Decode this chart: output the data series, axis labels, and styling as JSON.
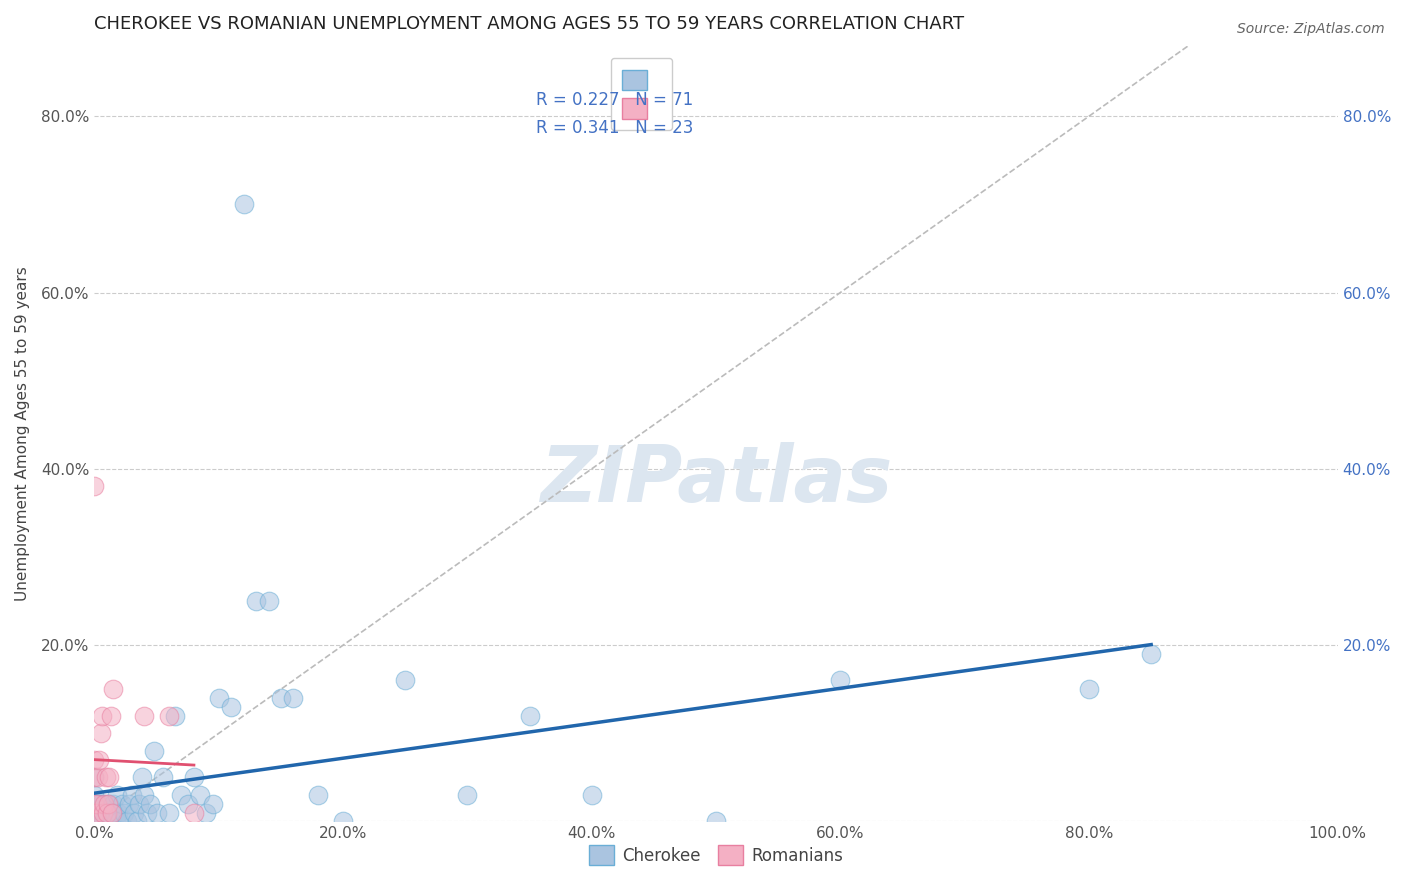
{
  "title": "CHEROKEE VS ROMANIAN UNEMPLOYMENT AMONG AGES 55 TO 59 YEARS CORRELATION CHART",
  "source": "Source: ZipAtlas.com",
  "ylabel": "Unemployment Among Ages 55 to 59 years",
  "xlim": [
    0.0,
    1.0
  ],
  "ylim": [
    0.0,
    0.88
  ],
  "xtick_positions": [
    0.0,
    0.2,
    0.4,
    0.6,
    0.8,
    1.0
  ],
  "xtick_labels": [
    "0.0%",
    "20.0%",
    "40.0%",
    "60.0%",
    "80.0%",
    "100.0%"
  ],
  "ytick_positions": [
    0.0,
    0.2,
    0.4,
    0.6,
    0.8
  ],
  "ytick_labels_left": [
    "",
    "20.0%",
    "40.0%",
    "60.0%",
    "80.0%"
  ],
  "ytick_labels_right": [
    "",
    "20.0%",
    "40.0%",
    "60.0%",
    "80.0%"
  ],
  "cherokee_color": "#aac4e0",
  "cherokee_edge": "#6aaed6",
  "romanian_color": "#f4b0c4",
  "romanian_edge": "#e87fa0",
  "trend_cherokee_color": "#2166ac",
  "trend_romanian_color": "#e05070",
  "diag_color": "#bbbbbb",
  "watermark_color": "#dce6f0",
  "watermark_text": "ZIPatlas",
  "legend_R_cherokee": "R = 0.227",
  "legend_N_cherokee": "N = 71",
  "legend_R_romanian": "R = 0.341",
  "legend_N_romanian": "N = 23",
  "legend_text_color": "#4472c4",
  "title_fontsize": 13,
  "axis_fontsize": 11,
  "tick_fontsize": 11,
  "legend_fontsize": 12,
  "marker_size": 180,
  "marker_alpha": 0.55,
  "grid_color": "#cccccc",
  "grid_style": "--",
  "bg_color": "#ffffff",
  "cherokee_x": [
    0.0,
    0.0,
    0.0,
    0.0,
    0.001,
    0.002,
    0.003,
    0.003,
    0.004,
    0.005,
    0.005,
    0.006,
    0.006,
    0.007,
    0.007,
    0.008,
    0.008,
    0.009,
    0.009,
    0.01,
    0.01,
    0.011,
    0.012,
    0.013,
    0.014,
    0.015,
    0.016,
    0.017,
    0.018,
    0.019,
    0.02,
    0.022,
    0.024,
    0.026,
    0.028,
    0.03,
    0.032,
    0.034,
    0.036,
    0.038,
    0.04,
    0.042,
    0.045,
    0.048,
    0.05,
    0.055,
    0.06,
    0.065,
    0.07,
    0.075,
    0.08,
    0.085,
    0.09,
    0.095,
    0.1,
    0.11,
    0.12,
    0.13,
    0.14,
    0.15,
    0.16,
    0.18,
    0.2,
    0.25,
    0.3,
    0.35,
    0.4,
    0.5,
    0.6,
    0.8,
    0.85
  ],
  "cherokee_y": [
    0.01,
    0.02,
    0.03,
    0.05,
    0.01,
    0.0,
    0.01,
    0.02,
    0.0,
    0.01,
    0.02,
    0.0,
    0.01,
    0.0,
    0.02,
    0.0,
    0.01,
    0.0,
    0.02,
    0.0,
    0.01,
    0.0,
    0.02,
    0.01,
    0.0,
    0.02,
    0.01,
    0.0,
    0.03,
    0.01,
    0.0,
    0.02,
    0.01,
    0.0,
    0.02,
    0.03,
    0.01,
    0.0,
    0.02,
    0.05,
    0.03,
    0.01,
    0.02,
    0.08,
    0.01,
    0.05,
    0.01,
    0.12,
    0.03,
    0.02,
    0.05,
    0.03,
    0.01,
    0.02,
    0.14,
    0.13,
    0.7,
    0.25,
    0.25,
    0.14,
    0.14,
    0.03,
    0.0,
    0.16,
    0.03,
    0.12,
    0.03,
    0.0,
    0.16,
    0.15,
    0.19
  ],
  "romanian_x": [
    0.0,
    0.0,
    0.0,
    0.0,
    0.0,
    0.001,
    0.002,
    0.003,
    0.004,
    0.005,
    0.006,
    0.007,
    0.008,
    0.009,
    0.01,
    0.011,
    0.012,
    0.013,
    0.014,
    0.015,
    0.04,
    0.06,
    0.08
  ],
  "romanian_y": [
    0.01,
    0.02,
    0.05,
    0.07,
    0.38,
    0.01,
    0.02,
    0.05,
    0.07,
    0.1,
    0.12,
    0.01,
    0.02,
    0.05,
    0.01,
    0.02,
    0.05,
    0.12,
    0.01,
    0.15,
    0.12,
    0.12,
    0.01
  ]
}
